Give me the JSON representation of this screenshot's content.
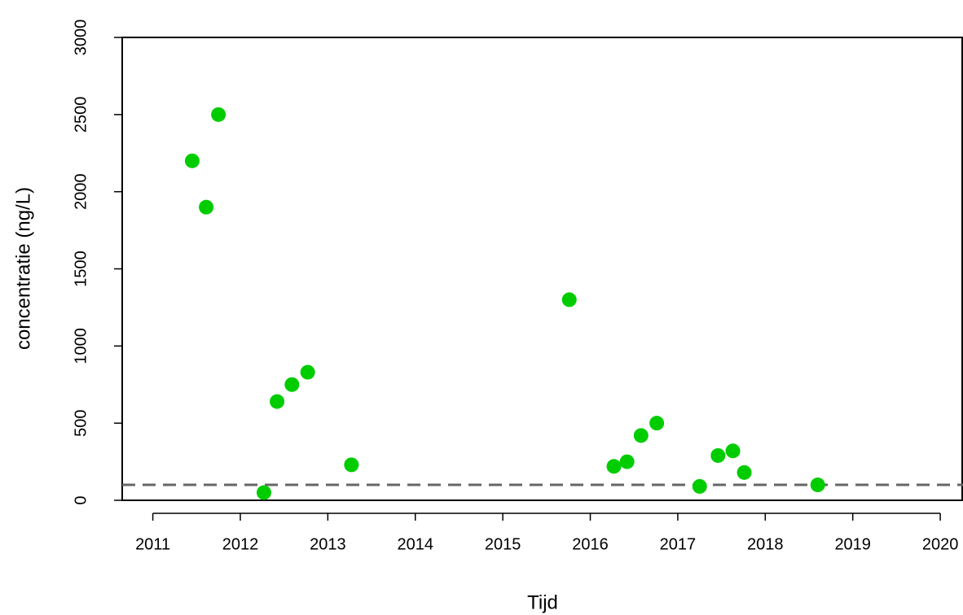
{
  "chart_data": {
    "type": "scatter",
    "xlabel": "Tijd",
    "ylabel": "concentratie (ng/L)",
    "x": [
      2011.45,
      2011.61,
      2011.75,
      2012.27,
      2012.42,
      2012.59,
      2012.77,
      2013.27,
      2015.76,
      2016.27,
      2016.42,
      2016.58,
      2016.76,
      2017.25,
      2017.46,
      2017.63,
      2017.76,
      2018.6
    ],
    "values": [
      2200,
      1900,
      2500,
      50,
      640,
      750,
      830,
      230,
      1300,
      220,
      250,
      420,
      500,
      90,
      290,
      320,
      180,
      100
    ],
    "color": "#00cc00",
    "hline": 100,
    "hline_color": "#666666",
    "xlim": [
      2010.65,
      2020.26
    ],
    "xticks": [
      2011,
      2012,
      2013,
      2014,
      2015,
      2016,
      2017,
      2018,
      2019,
      2020
    ],
    "ylim": [
      0,
      3000
    ],
    "yticks": [
      0,
      500,
      1000,
      1500,
      2000,
      2500,
      3000
    ]
  }
}
